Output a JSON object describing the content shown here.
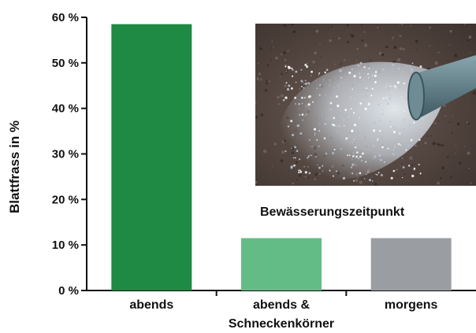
{
  "chart_data": {
    "type": "bar",
    "title": "Bewässerungszeitpunkt",
    "ylabel": "Blattfrass in %",
    "xlabel": "",
    "categories": [
      [
        "abends"
      ],
      [
        "abends &",
        "Schneckenkörner"
      ],
      [
        "morgens"
      ]
    ],
    "values": [
      58.5,
      11.5,
      11.5
    ],
    "ylim": [
      0,
      60
    ],
    "yticks": [
      0,
      10,
      20,
      30,
      40,
      50,
      60
    ],
    "ytick_labels": [
      "0 %",
      "10 %",
      "20 %",
      "30 %",
      "40 %",
      "50 %",
      "60 %"
    ],
    "bar_colors": [
      "#1e8a44",
      "#63bb86",
      "#9a9ea3"
    ],
    "grid": false,
    "legend": "none"
  },
  "photo": {
    "subject": "watering-can-spray-over-soil-icon",
    "colors": {
      "soil": "#5a4a43",
      "spray": "#cfd6de",
      "nozzle": "#5f7d88"
    }
  }
}
